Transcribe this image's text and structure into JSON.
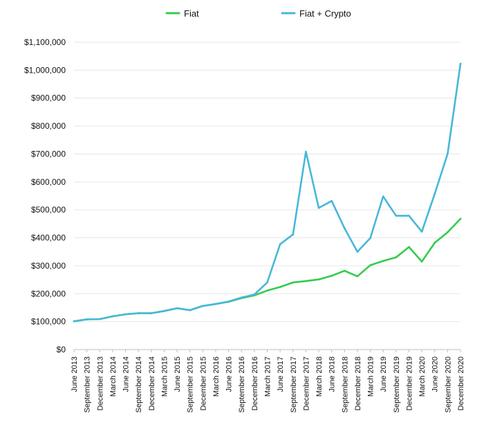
{
  "chart_data": {
    "type": "line",
    "title": "",
    "xlabel": "",
    "ylabel": "",
    "ylim": [
      0,
      1100000
    ],
    "y_ticks": [
      0,
      100000,
      200000,
      300000,
      400000,
      500000,
      600000,
      700000,
      800000,
      900000,
      1000000,
      1100000
    ],
    "y_tick_labels": [
      "$0",
      "$100,000",
      "$200,000",
      "$300,000",
      "$400,000",
      "$500,000",
      "$600,000",
      "$700,000",
      "$800,000",
      "$900,000",
      "$1,000,000",
      "$1,100,000"
    ],
    "categories": [
      "June 2013",
      "September 2013",
      "December 2013",
      "March 2014",
      "June 2014",
      "September 2014",
      "December 2014",
      "March 2015",
      "June 2015",
      "September 2015",
      "December 2015",
      "March 2016",
      "June 2016",
      "September 2016",
      "December 2016",
      "March 2017",
      "June 2017",
      "September 2017",
      "December 2017",
      "March 2018",
      "June 2018",
      "September 2018",
      "December 2018",
      "March 2019",
      "June 2019",
      "September 2019",
      "December 2019",
      "March 2020",
      "June 2020",
      "September 2020",
      "December 2020"
    ],
    "series": [
      {
        "name": "Fiat",
        "color": "#33cc4c",
        "values": [
          101000,
          108000,
          109000,
          119000,
          126000,
          130000,
          130000,
          138000,
          148000,
          141000,
          156000,
          163000,
          171000,
          184000,
          194000,
          211000,
          224000,
          240000,
          245000,
          251000,
          264000,
          282000,
          262000,
          302000,
          317000,
          330000,
          367000,
          315000,
          382000,
          420000,
          468000
        ]
      },
      {
        "name": "Fiat + Crypto",
        "color": "#45b8d8",
        "values": [
          101000,
          108000,
          109000,
          119000,
          126000,
          130000,
          130000,
          138000,
          148000,
          141000,
          156000,
          163000,
          172000,
          186000,
          197000,
          240000,
          377000,
          412000,
          708000,
          507000,
          532000,
          434000,
          350000,
          399000,
          548000,
          479000,
          479000,
          422000,
          557000,
          701000,
          1023000
        ]
      }
    ],
    "legend_position": "top-center",
    "grid": true
  }
}
